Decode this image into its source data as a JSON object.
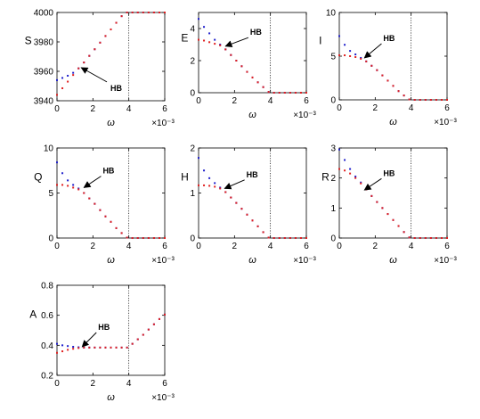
{
  "colors": {
    "upper": "#1f1fcc",
    "lower": "#e02020",
    "axis": "#000000"
  },
  "chart_data": [
    {
      "type": "scatter",
      "ylabel": "S",
      "xlabel": "ω",
      "xexp": "×10⁻³",
      "xlim": [
        0,
        6
      ],
      "ylim": [
        3940,
        4000
      ],
      "xticks": [
        "0",
        "2",
        "4",
        "6"
      ],
      "yticks": [
        "3940",
        "3960",
        "3980",
        "4000"
      ],
      "vline": 4,
      "annotation": {
        "text": "HB",
        "x": 1.35,
        "y": 3962.5
      },
      "series": [
        {
          "x": [
            0,
            0.3,
            0.6,
            0.9,
            1.2,
            1.5,
            1.8,
            2.1,
            2.4,
            2.7,
            3.0,
            3.3,
            3.6,
            3.9,
            4.2,
            4.5,
            4.8,
            5.1,
            5.4,
            5.7,
            6.0
          ],
          "y": [
            3954,
            3955.5,
            3957,
            3959,
            3962,
            3966,
            3970.5,
            3975,
            3979.5,
            3984,
            3988.5,
            3993,
            3997.5,
            4000,
            4000,
            4000,
            4000,
            4000,
            4000,
            4000,
            4000
          ]
        },
        {
          "x": [
            0,
            0.3,
            0.6,
            0.9,
            1.2,
            1.5,
            1.8,
            2.1,
            2.4,
            2.7,
            3.0,
            3.3,
            3.6,
            3.9,
            4.2,
            4.5,
            4.8,
            5.1,
            5.4,
            5.7,
            6.0
          ],
          "y": [
            3944,
            3948.5,
            3953,
            3957.5,
            3962,
            3966,
            3970.5,
            3975,
            3979.5,
            3984,
            3988.5,
            3993,
            3997.5,
            4000,
            4000,
            4000,
            4000,
            4000,
            4000,
            4000,
            4000
          ]
        }
      ]
    },
    {
      "type": "scatter",
      "ylabel": "E",
      "xlabel": "ω",
      "xexp": "×10⁻³",
      "xlim": [
        0,
        6
      ],
      "ylim": [
        0,
        5
      ],
      "xticks": [
        "0",
        "2",
        "4",
        "6"
      ],
      "yticks": [
        "0",
        "2",
        "4"
      ],
      "vline": 4,
      "annotation": {
        "text": "HB",
        "x": 1.5,
        "y": 2.9
      },
      "series": [
        {
          "x": [
            0,
            0.3,
            0.6,
            0.9,
            1.2,
            1.5,
            1.8,
            2.1,
            2.4,
            2.7,
            3.0,
            3.3,
            3.6,
            3.9,
            4.2,
            4.5,
            4.8,
            5.1,
            5.4,
            5.7,
            6.0
          ],
          "y": [
            4.6,
            4.1,
            3.7,
            3.3,
            3.0,
            2.7,
            2.35,
            2.0,
            1.65,
            1.3,
            0.95,
            0.65,
            0.35,
            0.05,
            0,
            0,
            0,
            0,
            0,
            0,
            0
          ]
        },
        {
          "x": [
            0,
            0.3,
            0.6,
            0.9,
            1.2,
            1.5,
            1.8,
            2.1,
            2.4,
            2.7,
            3.0,
            3.3,
            3.6,
            3.9,
            4.2,
            4.5,
            4.8,
            5.1,
            5.4,
            5.7,
            6.0
          ],
          "y": [
            3.3,
            3.25,
            3.15,
            3.05,
            2.95,
            2.7,
            2.35,
            2.0,
            1.65,
            1.3,
            0.95,
            0.65,
            0.35,
            0.05,
            0,
            0,
            0,
            0,
            0,
            0,
            0
          ]
        }
      ]
    },
    {
      "type": "scatter",
      "ylabel": "I",
      "xlabel": "ω",
      "xexp": "×10⁻³",
      "xlim": [
        0,
        6
      ],
      "ylim": [
        0,
        10
      ],
      "xticks": [
        "0",
        "2",
        "4",
        "6"
      ],
      "yticks": [
        "0",
        "5",
        "10"
      ],
      "vline": 4,
      "annotation": {
        "text": "HB",
        "x": 1.4,
        "y": 4.8
      },
      "series": [
        {
          "x": [
            0,
            0.3,
            0.6,
            0.9,
            1.2,
            1.5,
            1.8,
            2.1,
            2.4,
            2.7,
            3.0,
            3.3,
            3.6,
            3.9,
            4.2,
            4.5,
            4.8,
            5.1,
            5.4,
            5.7,
            6.0
          ],
          "y": [
            7.3,
            6.3,
            5.6,
            5.2,
            4.8,
            4.4,
            3.9,
            3.4,
            2.8,
            2.2,
            1.6,
            1.0,
            0.5,
            0.05,
            0,
            0,
            0,
            0,
            0,
            0,
            0
          ]
        },
        {
          "x": [
            0,
            0.3,
            0.6,
            0.9,
            1.2,
            1.5,
            1.8,
            2.1,
            2.4,
            2.7,
            3.0,
            3.3,
            3.6,
            3.9,
            4.2,
            4.5,
            4.8,
            5.1,
            5.4,
            5.7,
            6.0
          ],
          "y": [
            5.1,
            5.1,
            5.0,
            4.9,
            4.7,
            4.4,
            3.9,
            3.4,
            2.8,
            2.2,
            1.6,
            1.0,
            0.5,
            0.05,
            0,
            0,
            0,
            0,
            0,
            0,
            0
          ]
        }
      ]
    },
    {
      "type": "scatter",
      "ylabel": "Q",
      "xlabel": "ω",
      "xexp": "×10⁻³",
      "xlim": [
        0,
        6
      ],
      "ylim": [
        0,
        10
      ],
      "xticks": [
        "0",
        "2",
        "4",
        "6"
      ],
      "yticks": [
        "0",
        "5",
        "10"
      ],
      "vline": 4,
      "annotation": {
        "text": "HB",
        "x": 1.5,
        "y": 5.6
      },
      "series": [
        {
          "x": [
            0,
            0.3,
            0.6,
            0.9,
            1.2,
            1.5,
            1.8,
            2.1,
            2.4,
            2.7,
            3.0,
            3.3,
            3.6,
            3.9,
            4.2,
            4.5,
            4.8,
            5.1,
            5.4,
            5.7,
            6.0
          ],
          "y": [
            8.4,
            7.2,
            6.4,
            5.9,
            5.5,
            5.0,
            4.4,
            3.8,
            3.1,
            2.4,
            1.8,
            1.1,
            0.55,
            0.05,
            0,
            0,
            0,
            0,
            0,
            0,
            0
          ]
        },
        {
          "x": [
            0,
            0.3,
            0.6,
            0.9,
            1.2,
            1.5,
            1.8,
            2.1,
            2.4,
            2.7,
            3.0,
            3.3,
            3.6,
            3.9,
            4.2,
            4.5,
            4.8,
            5.1,
            5.4,
            5.7,
            6.0
          ],
          "y": [
            5.9,
            5.9,
            5.8,
            5.6,
            5.4,
            5.0,
            4.4,
            3.8,
            3.1,
            2.4,
            1.8,
            1.1,
            0.55,
            0.05,
            0,
            0,
            0,
            0,
            0,
            0,
            0
          ]
        }
      ]
    },
    {
      "type": "scatter",
      "ylabel": "H",
      "xlabel": "ω",
      "xexp": "×10⁻³",
      "xlim": [
        0,
        6
      ],
      "ylim": [
        0,
        2
      ],
      "xticks": [
        "0",
        "2",
        "4",
        "6"
      ],
      "yticks": [
        "0",
        "1",
        "2"
      ],
      "vline": 4,
      "annotation": {
        "text": "HB",
        "x": 1.45,
        "y": 1.1
      },
      "series": [
        {
          "x": [
            0,
            0.3,
            0.6,
            0.9,
            1.2,
            1.5,
            1.8,
            2.1,
            2.4,
            2.7,
            3.0,
            3.3,
            3.6,
            3.9,
            4.2,
            4.5,
            4.8,
            5.1,
            5.4,
            5.7,
            6.0
          ],
          "y": [
            1.78,
            1.5,
            1.33,
            1.22,
            1.12,
            1.02,
            0.9,
            0.78,
            0.65,
            0.52,
            0.39,
            0.26,
            0.13,
            0.01,
            0,
            0,
            0,
            0,
            0,
            0,
            0
          ]
        },
        {
          "x": [
            0,
            0.3,
            0.6,
            0.9,
            1.2,
            1.5,
            1.8,
            2.1,
            2.4,
            2.7,
            3.0,
            3.3,
            3.6,
            3.9,
            4.2,
            4.5,
            4.8,
            5.1,
            5.4,
            5.7,
            6.0
          ],
          "y": [
            1.17,
            1.17,
            1.16,
            1.14,
            1.1,
            1.02,
            0.9,
            0.78,
            0.65,
            0.52,
            0.39,
            0.26,
            0.13,
            0.01,
            0,
            0,
            0,
            0,
            0,
            0,
            0
          ]
        }
      ]
    },
    {
      "type": "scatter",
      "ylabel": "R",
      "xlabel": "ω",
      "xexp": "×10⁻³",
      "xlim": [
        0,
        6
      ],
      "ylim": [
        0,
        3
      ],
      "xticks": [
        "0",
        "2",
        "4",
        "6"
      ],
      "yticks": [
        "0",
        "1",
        "2",
        "3"
      ],
      "vline": 4,
      "annotation": {
        "text": "HB",
        "x": 1.4,
        "y": 1.6
      },
      "series": [
        {
          "x": [
            0,
            0.3,
            0.6,
            0.9,
            1.2,
            1.5,
            1.8,
            2.1,
            2.4,
            2.7,
            3.0,
            3.3,
            3.6,
            3.9,
            4.2,
            4.5,
            4.8,
            5.1,
            5.4,
            5.7,
            6.0
          ],
          "y": [
            2.95,
            2.6,
            2.3,
            2.05,
            1.85,
            1.62,
            1.4,
            1.2,
            1.0,
            0.8,
            0.6,
            0.4,
            0.2,
            0.02,
            0,
            0,
            0,
            0,
            0,
            0,
            0
          ]
        },
        {
          "x": [
            0,
            0.3,
            0.6,
            0.9,
            1.2,
            1.5,
            1.8,
            2.1,
            2.4,
            2.7,
            3.0,
            3.3,
            3.6,
            3.9,
            4.2,
            4.5,
            4.8,
            5.1,
            5.4,
            5.7,
            6.0
          ],
          "y": [
            2.3,
            2.25,
            2.15,
            2.0,
            1.82,
            1.62,
            1.4,
            1.2,
            1.0,
            0.8,
            0.6,
            0.4,
            0.2,
            0.02,
            0,
            0,
            0,
            0,
            0,
            0,
            0
          ]
        }
      ]
    },
    {
      "type": "scatter",
      "ylabel": "A",
      "xlabel": "ω",
      "xexp": "×10⁻³",
      "xlim": [
        0,
        6
      ],
      "ylim": [
        0.2,
        0.8
      ],
      "xticks": [
        "0",
        "2",
        "4",
        "6"
      ],
      "yticks": [
        "0.2",
        "0.4",
        "0.6",
        "0.8"
      ],
      "vline": 4,
      "annotation": {
        "text": "HB",
        "x": 1.4,
        "y": 0.39
      },
      "series": [
        {
          "x": [
            0,
            0.3,
            0.6,
            0.9,
            1.2,
            1.5,
            1.8,
            2.1,
            2.4,
            2.7,
            3.0,
            3.3,
            3.6,
            3.9,
            4.2,
            4.5,
            4.8,
            5.1,
            5.4,
            5.7,
            6.0
          ],
          "y": [
            0.41,
            0.4,
            0.395,
            0.39,
            0.387,
            0.385,
            0.385,
            0.385,
            0.385,
            0.385,
            0.385,
            0.385,
            0.385,
            0.385,
            0.41,
            0.44,
            0.47,
            0.505,
            0.54,
            0.575,
            0.605
          ]
        },
        {
          "x": [
            0,
            0.3,
            0.6,
            0.9,
            1.2,
            1.5,
            1.8,
            2.1,
            2.4,
            2.7,
            3.0,
            3.3,
            3.6,
            3.9,
            4.2,
            4.5,
            4.8,
            5.1,
            5.4,
            5.7,
            6.0
          ],
          "y": [
            0.35,
            0.36,
            0.37,
            0.377,
            0.382,
            0.385,
            0.385,
            0.385,
            0.385,
            0.385,
            0.385,
            0.385,
            0.385,
            0.385,
            0.41,
            0.44,
            0.47,
            0.505,
            0.54,
            0.575,
            0.605
          ]
        }
      ]
    }
  ]
}
